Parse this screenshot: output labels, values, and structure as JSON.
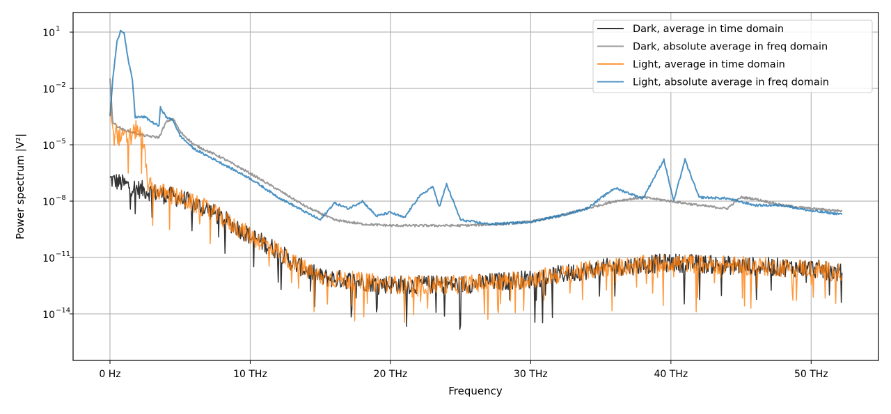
{
  "chart_data": {
    "type": "line",
    "title": "",
    "xlabel": "Frequency",
    "ylabel": "Power spectrum |V²|",
    "x_unit": "THz",
    "xlim": [
      -2.63,
      54.8
    ],
    "ylim": [
      110.0,
      3.3e-17
    ],
    "yscale": "log",
    "grid": true,
    "legend_position": "top-right",
    "x_ticks": [
      {
        "value": 0,
        "label": "0 Hz"
      },
      {
        "value": 10,
        "label": "10 THz"
      },
      {
        "value": 20,
        "label": "20 THz"
      },
      {
        "value": 30,
        "label": "30 THz"
      },
      {
        "value": 40,
        "label": "40 THz"
      },
      {
        "value": 50,
        "label": "50 THz"
      }
    ],
    "y_ticks": [
      {
        "value": 10.0,
        "base": "10",
        "exp": "1"
      },
      {
        "value": 0.01,
        "base": "10",
        "exp": "−2"
      },
      {
        "value": 1e-05,
        "base": "10",
        "exp": "−5"
      },
      {
        "value": 1e-08,
        "base": "10",
        "exp": "−8"
      },
      {
        "value": 1e-11,
        "base": "10",
        "exp": "−11"
      },
      {
        "value": 1e-14,
        "base": "10",
        "exp": "−14"
      }
    ],
    "series": [
      {
        "name": "Dark, average in time domain",
        "color": "#000000",
        "alpha": 0.8,
        "noisy": true,
        "points": [
          [
            0,
            1.6e-07
          ],
          [
            2,
            5e-08
          ],
          [
            5,
            1.6e-08
          ],
          [
            7,
            4e-09
          ],
          [
            10,
            1.6e-10
          ],
          [
            12,
            2.5e-11
          ],
          [
            13,
            6e-12
          ],
          [
            15,
            1e-12
          ],
          [
            20,
            4e-13
          ],
          [
            25,
            4e-13
          ],
          [
            30,
            8e-13
          ],
          [
            35,
            3e-12
          ],
          [
            40,
            6e-12
          ],
          [
            45,
            4e-12
          ],
          [
            50,
            3e-12
          ],
          [
            52.2,
            1.6e-12
          ]
        ]
      },
      {
        "name": "Dark, absolute average in freq domain",
        "color": "#808080",
        "alpha": 0.8,
        "noisy": false,
        "points": [
          [
            0,
            0.03
          ],
          [
            0.2,
            0.00016
          ],
          [
            0.5,
            0.0001
          ],
          [
            1,
            6e-05
          ],
          [
            1.5,
            5e-05
          ],
          [
            2.5,
            3e-05
          ],
          [
            3.5,
            2.5e-05
          ],
          [
            4,
            0.00016
          ],
          [
            4.5,
            0.00025
          ],
          [
            5,
            5e-05
          ],
          [
            6,
            1e-05
          ],
          [
            8,
            2e-06
          ],
          [
            10,
            3e-07
          ],
          [
            12,
            4e-08
          ],
          [
            14,
            5e-09
          ],
          [
            16,
            1e-09
          ],
          [
            18,
            6e-10
          ],
          [
            20,
            5e-10
          ],
          [
            22,
            5e-10
          ],
          [
            25,
            5e-10
          ],
          [
            28,
            6e-10
          ],
          [
            30,
            8e-10
          ],
          [
            32,
            1.6e-09
          ],
          [
            34,
            4e-09
          ],
          [
            36,
            1e-08
          ],
          [
            38,
            1.6e-08
          ],
          [
            40,
            1e-08
          ],
          [
            42,
            6e-09
          ],
          [
            44,
            4e-09
          ],
          [
            45,
            1.6e-08
          ],
          [
            46,
            1.3e-08
          ],
          [
            48,
            6e-09
          ],
          [
            50,
            4e-09
          ],
          [
            52.2,
            3e-09
          ]
        ]
      },
      {
        "name": "Light, average in time domain",
        "color": "#ff7f0e",
        "alpha": 0.8,
        "noisy": true,
        "points": [
          [
            0,
            0.001
          ],
          [
            0.3,
            0.0001
          ],
          [
            0.6,
            3e-05
          ],
          [
            1,
            2.5e-05
          ],
          [
            1.5,
            3e-05
          ],
          [
            2,
            0.0001
          ],
          [
            2.4,
            1e-05
          ],
          [
            2.7,
            1e-07
          ],
          [
            3,
            5e-08
          ],
          [
            5,
            1.6e-08
          ],
          [
            7,
            4e-09
          ],
          [
            10,
            1.6e-10
          ],
          [
            12,
            2.5e-11
          ],
          [
            13,
            6e-12
          ],
          [
            15,
            1e-12
          ],
          [
            20,
            4e-13
          ],
          [
            25,
            4e-13
          ],
          [
            30,
            8e-13
          ],
          [
            35,
            3e-12
          ],
          [
            40,
            6e-12
          ],
          [
            45,
            4e-12
          ],
          [
            50,
            3e-12
          ],
          [
            52.2,
            1.6e-12
          ]
        ]
      },
      {
        "name": "Light, absolute average in freq domain",
        "color": "#1f77b4",
        "alpha": 0.8,
        "noisy": false,
        "points": [
          [
            0,
            0.0003
          ],
          [
            0.2,
            0.03
          ],
          [
            0.5,
            3
          ],
          [
            0.75,
            12
          ],
          [
            1,
            10
          ],
          [
            1.3,
            0.3
          ],
          [
            1.6,
            0.03
          ],
          [
            1.8,
            0.0003
          ],
          [
            2.5,
            0.0003
          ],
          [
            3,
            0.00016
          ],
          [
            3.5,
            0.0001
          ],
          [
            3.6,
            0.001
          ],
          [
            4,
            0.0003
          ],
          [
            4.5,
            0.0002
          ],
          [
            5,
            3e-05
          ],
          [
            6,
            6e-06
          ],
          [
            8,
            1e-06
          ],
          [
            10,
            1.6e-07
          ],
          [
            12,
            1.6e-08
          ],
          [
            14,
            2.5e-09
          ],
          [
            15,
            1e-09
          ],
          [
            16,
            8e-09
          ],
          [
            17,
            4e-09
          ],
          [
            18,
            1e-08
          ],
          [
            19,
            1.6e-09
          ],
          [
            20,
            2.5e-09
          ],
          [
            21,
            1.3e-09
          ],
          [
            22,
            1.6e-08
          ],
          [
            23,
            6e-08
          ],
          [
            23.5,
            5e-09
          ],
          [
            24,
            8e-08
          ],
          [
            25,
            1e-09
          ],
          [
            27,
            6e-10
          ],
          [
            29,
            7e-10
          ],
          [
            30,
            8e-10
          ],
          [
            32,
            1.6e-09
          ],
          [
            34,
            4e-09
          ],
          [
            36,
            5e-08
          ],
          [
            38,
            1.4e-08
          ],
          [
            39.5,
            1.6e-06
          ],
          [
            40.2,
            1e-08
          ],
          [
            41,
            1.6e-06
          ],
          [
            42,
            1.6e-08
          ],
          [
            44,
            1.4e-08
          ],
          [
            46,
            6e-09
          ],
          [
            48,
            6e-09
          ],
          [
            50,
            3e-09
          ],
          [
            52.2,
            2e-09
          ]
        ]
      }
    ]
  }
}
